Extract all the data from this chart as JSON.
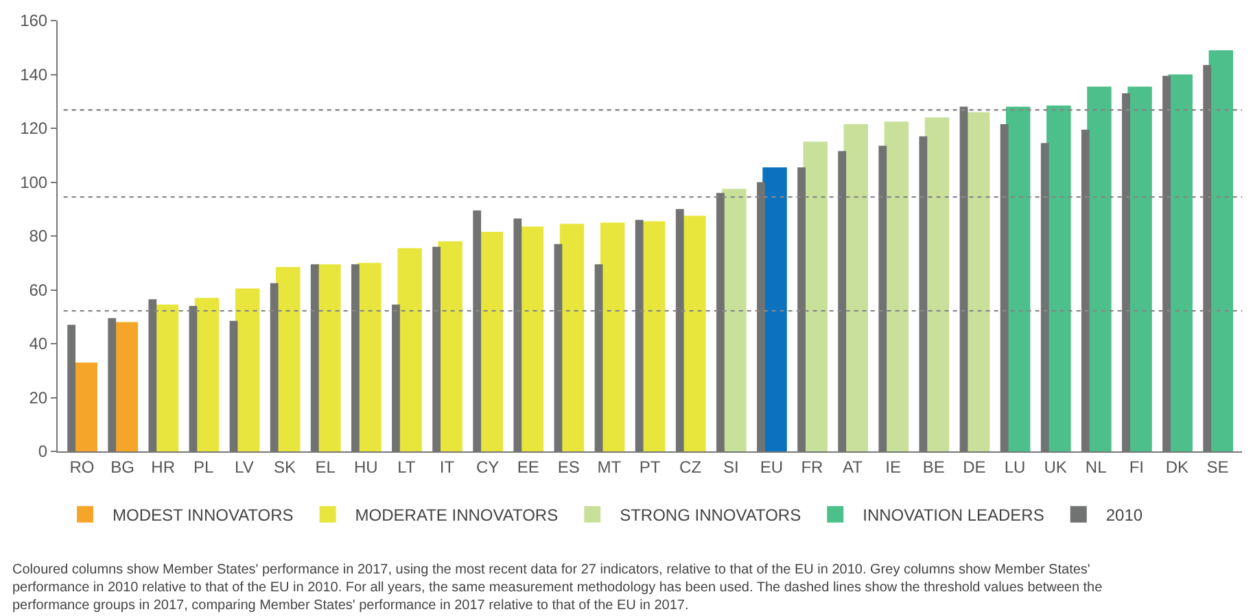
{
  "chart_data": {
    "type": "bar",
    "categories": [
      "RO",
      "BG",
      "HR",
      "PL",
      "LV",
      "SK",
      "EL",
      "HU",
      "LT",
      "IT",
      "CY",
      "EE",
      "ES",
      "MT",
      "PT",
      "CZ",
      "SI",
      "EU",
      "FR",
      "AT",
      "IE",
      "BE",
      "DE",
      "LU",
      "UK",
      "NL",
      "FI",
      "DK",
      "SE"
    ],
    "series": [
      {
        "name": "MODEST INNOVATORS",
        "color": "#f5a52a",
        "values": [
          33,
          48,
          null,
          null,
          null,
          null,
          null,
          null,
          null,
          null,
          null,
          null,
          null,
          null,
          null,
          null,
          null,
          null,
          null,
          null,
          null,
          null,
          null,
          null,
          null,
          null,
          null,
          null,
          null
        ]
      },
      {
        "name": "MODERATE INNOVATORS",
        "color": "#e8e63c",
        "values": [
          null,
          null,
          54.5,
          57,
          60.5,
          68.5,
          69.5,
          70,
          75.5,
          78,
          81.5,
          83.5,
          84.5,
          85,
          85.5,
          87.5,
          null,
          null,
          null,
          null,
          null,
          null,
          null,
          null,
          null,
          null,
          null,
          null,
          null
        ]
      },
      {
        "name": "STRONG INNOVATORS",
        "color": "#c9e09a",
        "values": [
          null,
          null,
          null,
          null,
          null,
          null,
          null,
          null,
          null,
          null,
          null,
          null,
          null,
          null,
          null,
          null,
          97.5,
          null,
          115,
          121.5,
          122.5,
          124,
          126,
          null,
          null,
          null,
          null,
          null,
          null
        ]
      },
      {
        "color": "#0a72bf",
        "values": [
          null,
          null,
          null,
          null,
          null,
          null,
          null,
          null,
          null,
          null,
          null,
          null,
          null,
          null,
          null,
          null,
          null,
          105.5,
          null,
          null,
          null,
          null,
          null,
          null,
          null,
          null,
          null,
          null,
          null
        ]
      },
      {
        "name": "INNOVATION LEADERS",
        "color": "#4cbf8a",
        "values": [
          null,
          null,
          null,
          null,
          null,
          null,
          null,
          null,
          null,
          null,
          null,
          null,
          null,
          null,
          null,
          null,
          null,
          null,
          null,
          null,
          null,
          null,
          null,
          128,
          128.5,
          135.5,
          135.5,
          140,
          149
        ]
      },
      {
        "name": "2010",
        "color": "#717272",
        "values": [
          47,
          49.5,
          56.5,
          54,
          48.5,
          62.5,
          69.5,
          69.5,
          54.5,
          76,
          89.5,
          86.5,
          77,
          69.5,
          86,
          90,
          96,
          100,
          105.5,
          111.5,
          113.5,
          117,
          128,
          121.5,
          114.5,
          119.5,
          133,
          139.5,
          143.5
        ]
      }
    ],
    "ylim": [
      0,
      160
    ],
    "yticks": [
      0,
      20,
      40,
      60,
      80,
      100,
      120,
      140,
      160
    ],
    "legend": "bottom",
    "ref_lines": [
      {
        "axis": "y",
        "value": 126.8,
        "color": "#888888",
        "line_style": "dotted"
      },
      {
        "axis": "y",
        "value": 94.5,
        "color": "#888888",
        "line_style": "dotted"
      },
      {
        "axis": "y",
        "value": 52.2,
        "color": "#888888",
        "line_style": "dotted"
      }
    ],
    "annotations": [
      "Coloured columns show Member States' performance in 2017, using the most recent data for 27 indicators, relative to that of the EU in 2010. Grey columns show Member States' performance in 2010 relative to that of the EU in 2010. For all years, the same measurement methodology has been used. The dashed lines show the threshold values between the performance groups in 2017, comparing Member States' performance in 2017 relative to that of the EU in 2017."
    ]
  }
}
